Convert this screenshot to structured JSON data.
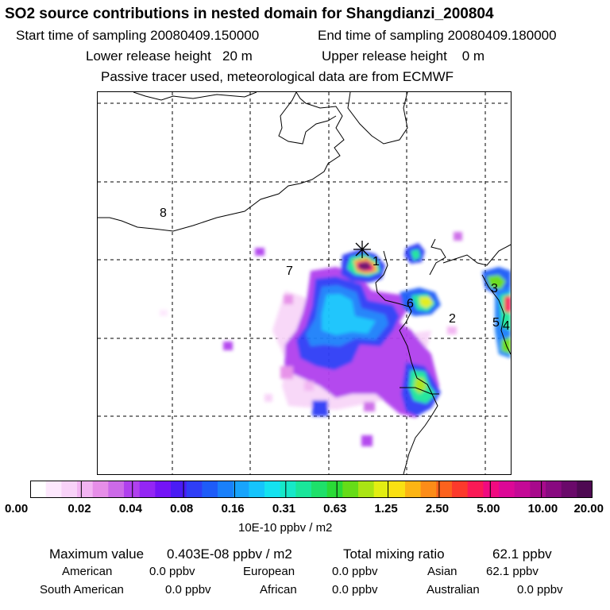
{
  "title": "SO2 source contributions in nested domain for Shangdianzi_200804",
  "header": {
    "start_label": "Start time of sampling 20080409.150000",
    "end_label": "End time of sampling 20080409.180000",
    "lower_label": "Lower release height   20 m",
    "upper_label": "Upper release height    0 m",
    "tracer_label": "Passive tracer used, meteorological data are from ECMWF"
  },
  "region_labels": {
    "r1": "1",
    "r2": "2",
    "r3": "3",
    "r4": "4",
    "r5": "5",
    "r6": "6",
    "r7": "7",
    "r8": "8"
  },
  "chart_data": {
    "type": "heatmap",
    "title": "SO2 source contributions in nested domain for Shangdianzi_200804",
    "units": "10E-10 ppbv / m2",
    "colorbar": {
      "tick_labels": [
        "0.00",
        "0.02",
        "0.04",
        "0.08",
        "0.16",
        "0.31",
        "0.63",
        "1.25",
        "2.50",
        "5.00",
        "10.00",
        "20.00"
      ],
      "colors": [
        "#ffffff",
        "#fde8fd",
        "#f8d2f8",
        "#f2b4f2",
        "#e68ee8",
        "#cc6ae8",
        "#b040ee",
        "#9426f4",
        "#7414f6",
        "#4a1cf4",
        "#2f3ef6",
        "#1e5cf8",
        "#1a80fa",
        "#18a4fc",
        "#16c4fc",
        "#14e2f0",
        "#16e8c8",
        "#1ae69a",
        "#1ee06a",
        "#2ada36",
        "#66dc18",
        "#aae414",
        "#e2ee12",
        "#fae012",
        "#fcb414",
        "#fc8c18",
        "#fc621e",
        "#fc3a2c",
        "#fa1a56",
        "#f00a80",
        "#dc0896",
        "#c40a96",
        "#a80a8c",
        "#880a80",
        "#6a0a6a",
        "#4e0a52"
      ],
      "label": "10E-10 ppbv / m2"
    },
    "receptor": "Shangdianzi",
    "maximum_value": "0.403E-08 ppbv / m2",
    "total_mixing_ratio": "62.1 ppbv"
  },
  "stats": {
    "max_label": "Maximum value",
    "max_value": "0.403E-08 ppbv / m2",
    "total_label": "Total mixing ratio",
    "total_value": "62.1 ppbv",
    "american_label": "American",
    "american_value": "0.0 ppbv",
    "european_label": "European",
    "european_value": "0.0 ppbv",
    "asian_label": "Asian",
    "asian_value": "62.1 ppbv",
    "south_american_label": "South American",
    "south_american_value": "0.0 ppbv",
    "african_label": "African",
    "african_value": "0.0 ppbv",
    "australian_label": "Australian",
    "australian_value": "0.0 ppbv"
  }
}
